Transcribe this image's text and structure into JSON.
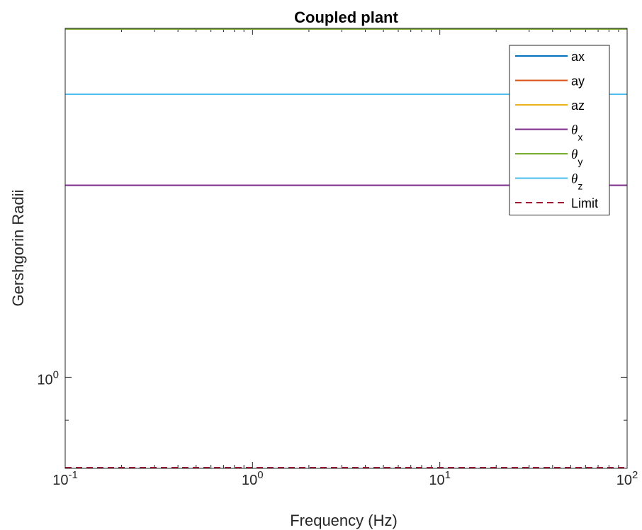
{
  "chart_data": {
    "type": "line",
    "title": "Coupled plant",
    "xlabel": "Frequency (Hz)",
    "ylabel": "Gershgorin Radii",
    "xscale": "log",
    "yscale": "log",
    "xlim": [
      0.1,
      100
    ],
    "ylim": [
      0.8,
      2.35
    ],
    "x_ticks": [
      {
        "base": "10",
        "exp": "-1",
        "value": 0.1
      },
      {
        "base": "10",
        "exp": "0",
        "value": 1
      },
      {
        "base": "10",
        "exp": "1",
        "value": 10
      },
      {
        "base": "10",
        "exp": "2",
        "value": 100
      }
    ],
    "y_ticks": [
      {
        "base": "10",
        "exp": "0",
        "value": 1
      }
    ],
    "legend_placement": "top-right",
    "series": [
      {
        "name": "ax",
        "label_main": "ax",
        "label_sub": "",
        "color": "#0072BD",
        "style": "solid",
        "x": [
          0.1,
          100
        ],
        "y": [
          2.35,
          2.35
        ]
      },
      {
        "name": "ay",
        "label_main": "ay",
        "label_sub": "",
        "color": "#D95319",
        "style": "solid",
        "x": [
          0.1,
          100
        ],
        "y": [
          2.35,
          2.35
        ]
      },
      {
        "name": "az",
        "label_main": "az",
        "label_sub": "",
        "color": "#EDB120",
        "style": "solid",
        "x": [
          0.1,
          100
        ],
        "y": [
          2.35,
          2.35
        ]
      },
      {
        "name": "θx",
        "label_main": "θ",
        "label_sub": "x",
        "color": "#7E2F8E",
        "style": "solid",
        "x": [
          0.1,
          100
        ],
        "y": [
          1.6,
          1.6
        ]
      },
      {
        "name": "θy",
        "label_main": "θ",
        "label_sub": "y",
        "color": "#77AC30",
        "style": "solid",
        "x": [
          0.1,
          100
        ],
        "y": [
          2.35,
          2.35
        ]
      },
      {
        "name": "θz",
        "label_main": "θ",
        "label_sub": "z",
        "color": "#4DBEEE",
        "style": "solid",
        "x": [
          0.1,
          100
        ],
        "y": [
          2.0,
          2.0
        ]
      },
      {
        "name": "Limit",
        "label_main": "Limit",
        "label_sub": "",
        "color": "#A2142F",
        "style": "dashed",
        "x": [
          0.1,
          100
        ],
        "y": [
          0.8,
          0.8
        ]
      }
    ]
  }
}
